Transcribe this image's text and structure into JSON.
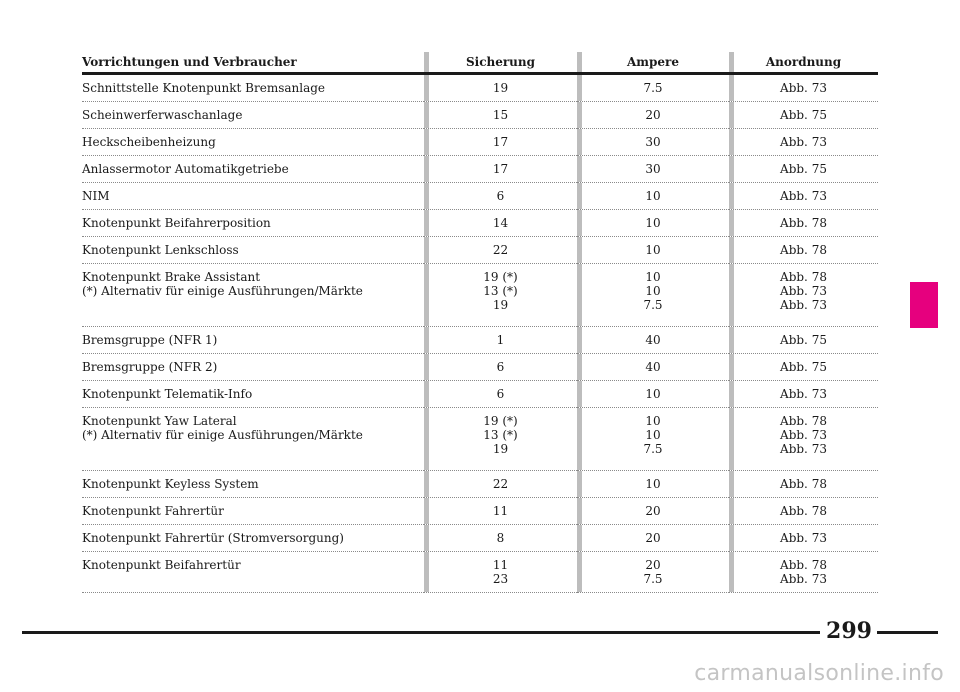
{
  "table": {
    "headers": [
      "Vorrichtungen und Verbraucher",
      "Sicherung",
      "Ampere",
      "Anordnung"
    ],
    "rows": [
      {
        "device": "Schnittstelle Knotenpunkt Bremsanlage",
        "fuse": "19",
        "ampere": "7.5",
        "location": "Abb. 73"
      },
      {
        "device": "Scheinwerferwaschanlage",
        "fuse": "15",
        "ampere": "20",
        "location": "Abb. 75"
      },
      {
        "device": "Heckscheibenheizung",
        "fuse": "17",
        "ampere": "30",
        "location": "Abb. 73"
      },
      {
        "device": "Anlassermotor Automatikgetriebe",
        "fuse": "17",
        "ampere": "30",
        "location": "Abb. 75"
      },
      {
        "device": "NIM",
        "fuse": "6",
        "ampere": "10",
        "location": "Abb. 73"
      },
      {
        "device": "Knotenpunkt Beifahrerposition",
        "fuse": "14",
        "ampere": "10",
        "location": "Abb. 78"
      },
      {
        "device": "Knotenpunkt Lenkschloss",
        "fuse": "22",
        "ampere": "10",
        "location": "Abb. 78"
      },
      {
        "device": "Knotenpunkt Brake Assistant\n(*) Alternativ für einige Ausführungen/Märkte",
        "fuse": "19 (*)\n13 (*)\n19",
        "ampere": "10\n10\n7.5",
        "location": "Abb. 78\nAbb. 73\nAbb. 73"
      },
      {
        "device": "Bremsgruppe (NFR 1)",
        "fuse": "1",
        "ampere": "40",
        "location": "Abb. 75"
      },
      {
        "device": "Bremsgruppe (NFR 2)",
        "fuse": "6",
        "ampere": "40",
        "location": "Abb. 75"
      },
      {
        "device": "Knotenpunkt Telematik-Info",
        "fuse": "6",
        "ampere": "10",
        "location": "Abb. 73"
      },
      {
        "device": "Knotenpunkt Yaw Lateral\n(*) Alternativ für einige Ausführungen/Märkte",
        "fuse": "19 (*)\n13 (*)\n19",
        "ampere": "10\n10\n7.5",
        "location": "Abb. 78\nAbb. 73\nAbb. 73"
      },
      {
        "device": "Knotenpunkt Keyless System",
        "fuse": "22",
        "ampere": "10",
        "location": "Abb. 78"
      },
      {
        "device": "Knotenpunkt Fahrertür",
        "fuse": "11",
        "ampere": "20",
        "location": "Abb. 78"
      },
      {
        "device": "Knotenpunkt Fahrertür (Stromversorgung)",
        "fuse": "8",
        "ampere": "20",
        "location": "Abb. 73"
      },
      {
        "device": "Knotenpunkt Beifahrertür",
        "fuse": "11\n23",
        "ampere": "20\n7.5",
        "location": "Abb. 78\nAbb. 73"
      }
    ]
  },
  "page_number": "299",
  "watermark": "carmanualsonline.info",
  "colors": {
    "section_tab": "#e6007e",
    "column_separator": "#bdbdbd",
    "text": "#1a1a1a"
  }
}
